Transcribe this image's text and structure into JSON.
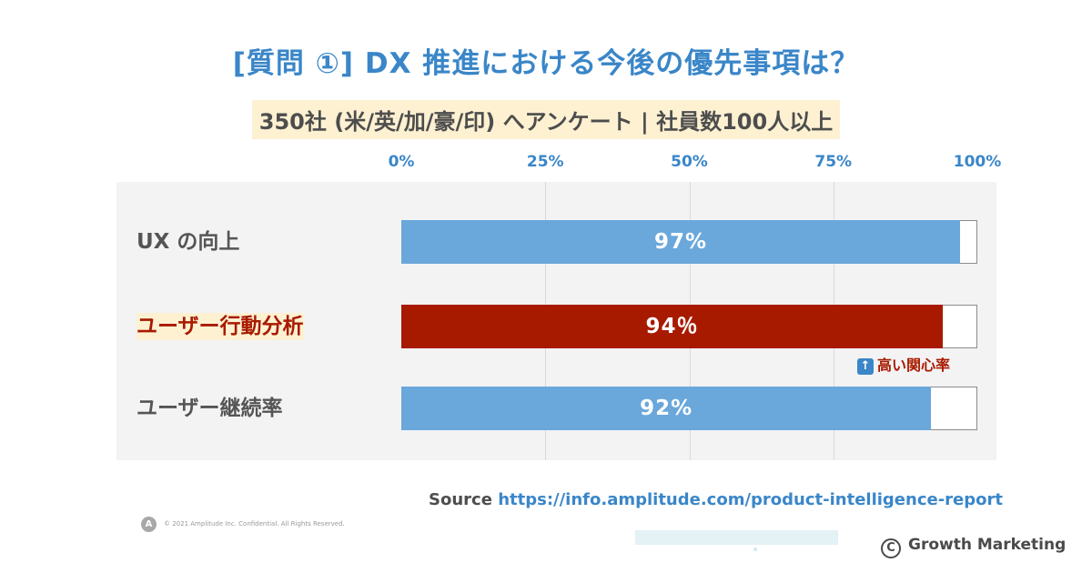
{
  "title": "[質問 ①] DX 推進における今後の優先事項は？",
  "subtitle": "350社 (米/英/加/豪/印) へアンケート | 社員数100人以上",
  "chart_data": {
    "type": "bar",
    "orientation": "horizontal",
    "categories": [
      "UX の向上",
      "ユーザー行動分析",
      "ユーザー継続率"
    ],
    "values": [
      97,
      94,
      92
    ],
    "value_labels": [
      "97%",
      "94％",
      "92%"
    ],
    "highlight_index": 1,
    "x_ticks": [
      "0%",
      "25%",
      "50%",
      "75%",
      "100%"
    ],
    "xlim": [
      0,
      100
    ],
    "grid": true,
    "annotation": "高い関心率"
  },
  "colors": {
    "title": "#3a86c8",
    "bar": "#6aa7db",
    "bar_highlight": "#a81a00",
    "highlight_bg": "#fdf1d2"
  },
  "icons": {
    "annotation": "up-arrow-icon",
    "brand": "copyright-c-icon",
    "amplitude": "amplitude-logo-icon"
  },
  "source": {
    "label": "Source",
    "url": "https://info.amplitude.com/product-intelligence-report"
  },
  "copyright": "© 2021 Amplitude Inc.  Confidential.  All Rights Reserved.",
  "brand": "Growth Marketing"
}
